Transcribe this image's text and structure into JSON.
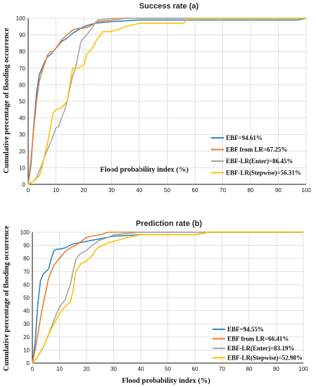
{
  "chart_data": [
    {
      "type": "line",
      "title": "Success rate (a)",
      "xlabel": "Flood probability index (%)",
      "ylabel": "Cumulative percentage of flooding occurrence",
      "xlim": [
        0,
        100
      ],
      "ylim": [
        0,
        100
      ],
      "xticks": [
        0,
        10,
        20,
        30,
        40,
        50,
        60,
        70,
        80,
        90,
        100
      ],
      "yticks": [
        0,
        10,
        20,
        30,
        40,
        50,
        60,
        70,
        80,
        90,
        100
      ],
      "grid": true,
      "legend_position": "bottom-right",
      "series": [
        {
          "name": "EBF=94.61%",
          "color": "#2e86c1",
          "x": [
            0,
            1,
            2,
            3,
            4,
            5,
            6,
            7,
            8,
            9,
            10,
            12,
            14,
            16,
            18,
            20,
            22,
            24,
            30,
            40,
            60,
            80,
            97,
            100
          ],
          "y": [
            0,
            12,
            35,
            55,
            66,
            70,
            74,
            77,
            78,
            80,
            82,
            86,
            88,
            91,
            93,
            95,
            96,
            97,
            98,
            99,
            99,
            99,
            99,
            100
          ]
        },
        {
          "name": "EBF from LR=67.25%",
          "color": "#ed7d31",
          "x": [
            0,
            1,
            2,
            3,
            4,
            5,
            6,
            7,
            8,
            9,
            10,
            12,
            14,
            16,
            18,
            20,
            22,
            25,
            30,
            35,
            50,
            100
          ],
          "y": [
            0,
            15,
            33,
            50,
            62,
            68,
            73,
            78,
            80,
            80,
            82,
            87,
            90,
            93,
            94,
            94,
            95,
            98,
            99,
            100,
            100,
            100
          ]
        },
        {
          "name": "EBF-LR(Enter)=86.45%",
          "color": "#a5a5a5",
          "x": [
            0,
            2,
            3,
            4,
            5,
            6,
            7,
            8,
            9,
            10,
            11,
            12,
            13,
            14,
            15,
            16,
            17,
            18,
            19,
            20,
            21,
            22,
            23,
            24,
            25,
            30,
            40,
            60,
            100
          ],
          "y": [
            0,
            2,
            4,
            8,
            12,
            17,
            21,
            25,
            29,
            34,
            35,
            40,
            44,
            50,
            58,
            65,
            70,
            78,
            86,
            88,
            90,
            92,
            94,
            97,
            99,
            100,
            100,
            100,
            100
          ]
        },
        {
          "name": "EBF-LR(Stepwise)=56.31%",
          "color": "#ffc000",
          "x": [
            0,
            2,
            4,
            5,
            6,
            7,
            8,
            9,
            10,
            12,
            14,
            15,
            16,
            17,
            18,
            20,
            21,
            22,
            23,
            24,
            25,
            27,
            30,
            32,
            35,
            40,
            45,
            50,
            56,
            57,
            60,
            100
          ],
          "y": [
            0,
            2,
            5,
            10,
            18,
            25,
            34,
            43,
            45,
            46,
            50,
            60,
            70,
            70,
            70,
            72,
            78,
            80,
            82,
            85,
            88,
            92,
            92,
            93,
            95,
            97,
            97,
            97,
            97,
            100,
            100,
            100
          ]
        }
      ]
    },
    {
      "type": "line",
      "title": "Prediction rate (b)",
      "xlabel": "Flood probability index (%)",
      "ylabel": "Cumulative percentage of flooding occurrence",
      "xlim": [
        0,
        100
      ],
      "ylim": [
        0,
        100
      ],
      "xticks": [
        0,
        10,
        20,
        30,
        40,
        50,
        60,
        70,
        80,
        90,
        100
      ],
      "yticks": [
        0,
        10,
        20,
        30,
        40,
        50,
        60,
        70,
        80,
        90,
        100
      ],
      "grid": true,
      "legend_position": "bottom-right",
      "series": [
        {
          "name": "EBF=94.55%",
          "color": "#2e86c1",
          "x": [
            0,
            1,
            2,
            3,
            4,
            5,
            6,
            7,
            8,
            9,
            10,
            12,
            15,
            20,
            25,
            30,
            40,
            50,
            60,
            65,
            100
          ],
          "y": [
            0,
            15,
            45,
            63,
            68,
            70,
            72,
            80,
            86,
            87,
            87,
            88,
            91,
            93,
            95,
            97,
            98,
            98,
            98,
            100,
            100
          ]
        },
        {
          "name": "EBF from LR=66.41%",
          "color": "#ed7d31",
          "x": [
            0,
            1,
            2,
            3,
            4,
            5,
            6,
            7,
            8,
            10,
            12,
            14,
            16,
            18,
            20,
            22,
            25,
            28,
            30,
            100
          ],
          "y": [
            0,
            10,
            22,
            34,
            45,
            55,
            65,
            70,
            75,
            80,
            85,
            88,
            90,
            93,
            96,
            97,
            98,
            100,
            100,
            100
          ]
        },
        {
          "name": "EBF-LR(Enter)=83.19%",
          "color": "#a5a5a5",
          "x": [
            0,
            2,
            4,
            6,
            8,
            10,
            12,
            14,
            15,
            16,
            17,
            18,
            19,
            20,
            22,
            25,
            28,
            30,
            40,
            100
          ],
          "y": [
            0,
            5,
            12,
            22,
            33,
            43,
            48,
            60,
            70,
            79,
            82,
            84,
            85,
            86,
            90,
            94,
            96,
            98,
            100,
            100
          ]
        },
        {
          "name": "EBF-LR(Stepwise)=52.98%",
          "color": "#ffc000",
          "x": [
            0,
            2,
            4,
            6,
            8,
            10,
            12,
            13,
            14,
            15,
            16,
            18,
            20,
            22,
            24,
            26,
            28,
            30,
            35,
            40,
            50,
            60,
            65,
            100
          ],
          "y": [
            0,
            5,
            12,
            22,
            30,
            38,
            43,
            45,
            47,
            55,
            70,
            76,
            78,
            82,
            88,
            90,
            92,
            93,
            96,
            98,
            98,
            98,
            100,
            100
          ]
        }
      ]
    }
  ]
}
